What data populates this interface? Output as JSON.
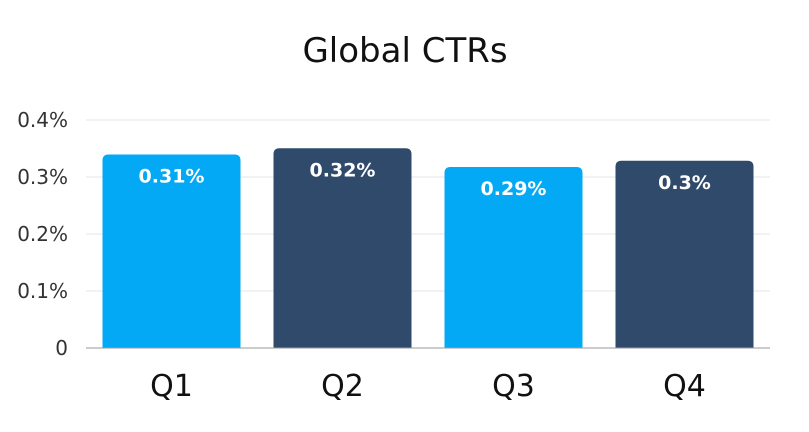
{
  "chart_data": {
    "type": "bar",
    "title": "Global CTRs",
    "categories": [
      "Q1",
      "Q2",
      "Q3",
      "Q4"
    ],
    "values": [
      0.31,
      0.32,
      0.29,
      0.3
    ],
    "data_labels": [
      "0.31%",
      "0.32%",
      "0.29%",
      "0.3%"
    ],
    "bar_colors": [
      "#03A9F4",
      "#2F4A6B",
      "#03A9F4",
      "#2F4A6B"
    ],
    "ylim": [
      0,
      0.4
    ],
    "yticks": [
      0,
      0.1,
      0.2,
      0.3,
      0.4
    ],
    "ytick_labels": [
      "0",
      "0.1%",
      "0.2%",
      "0.3%",
      "0.4%"
    ],
    "grid": true,
    "xlabel": "",
    "ylabel": ""
  }
}
